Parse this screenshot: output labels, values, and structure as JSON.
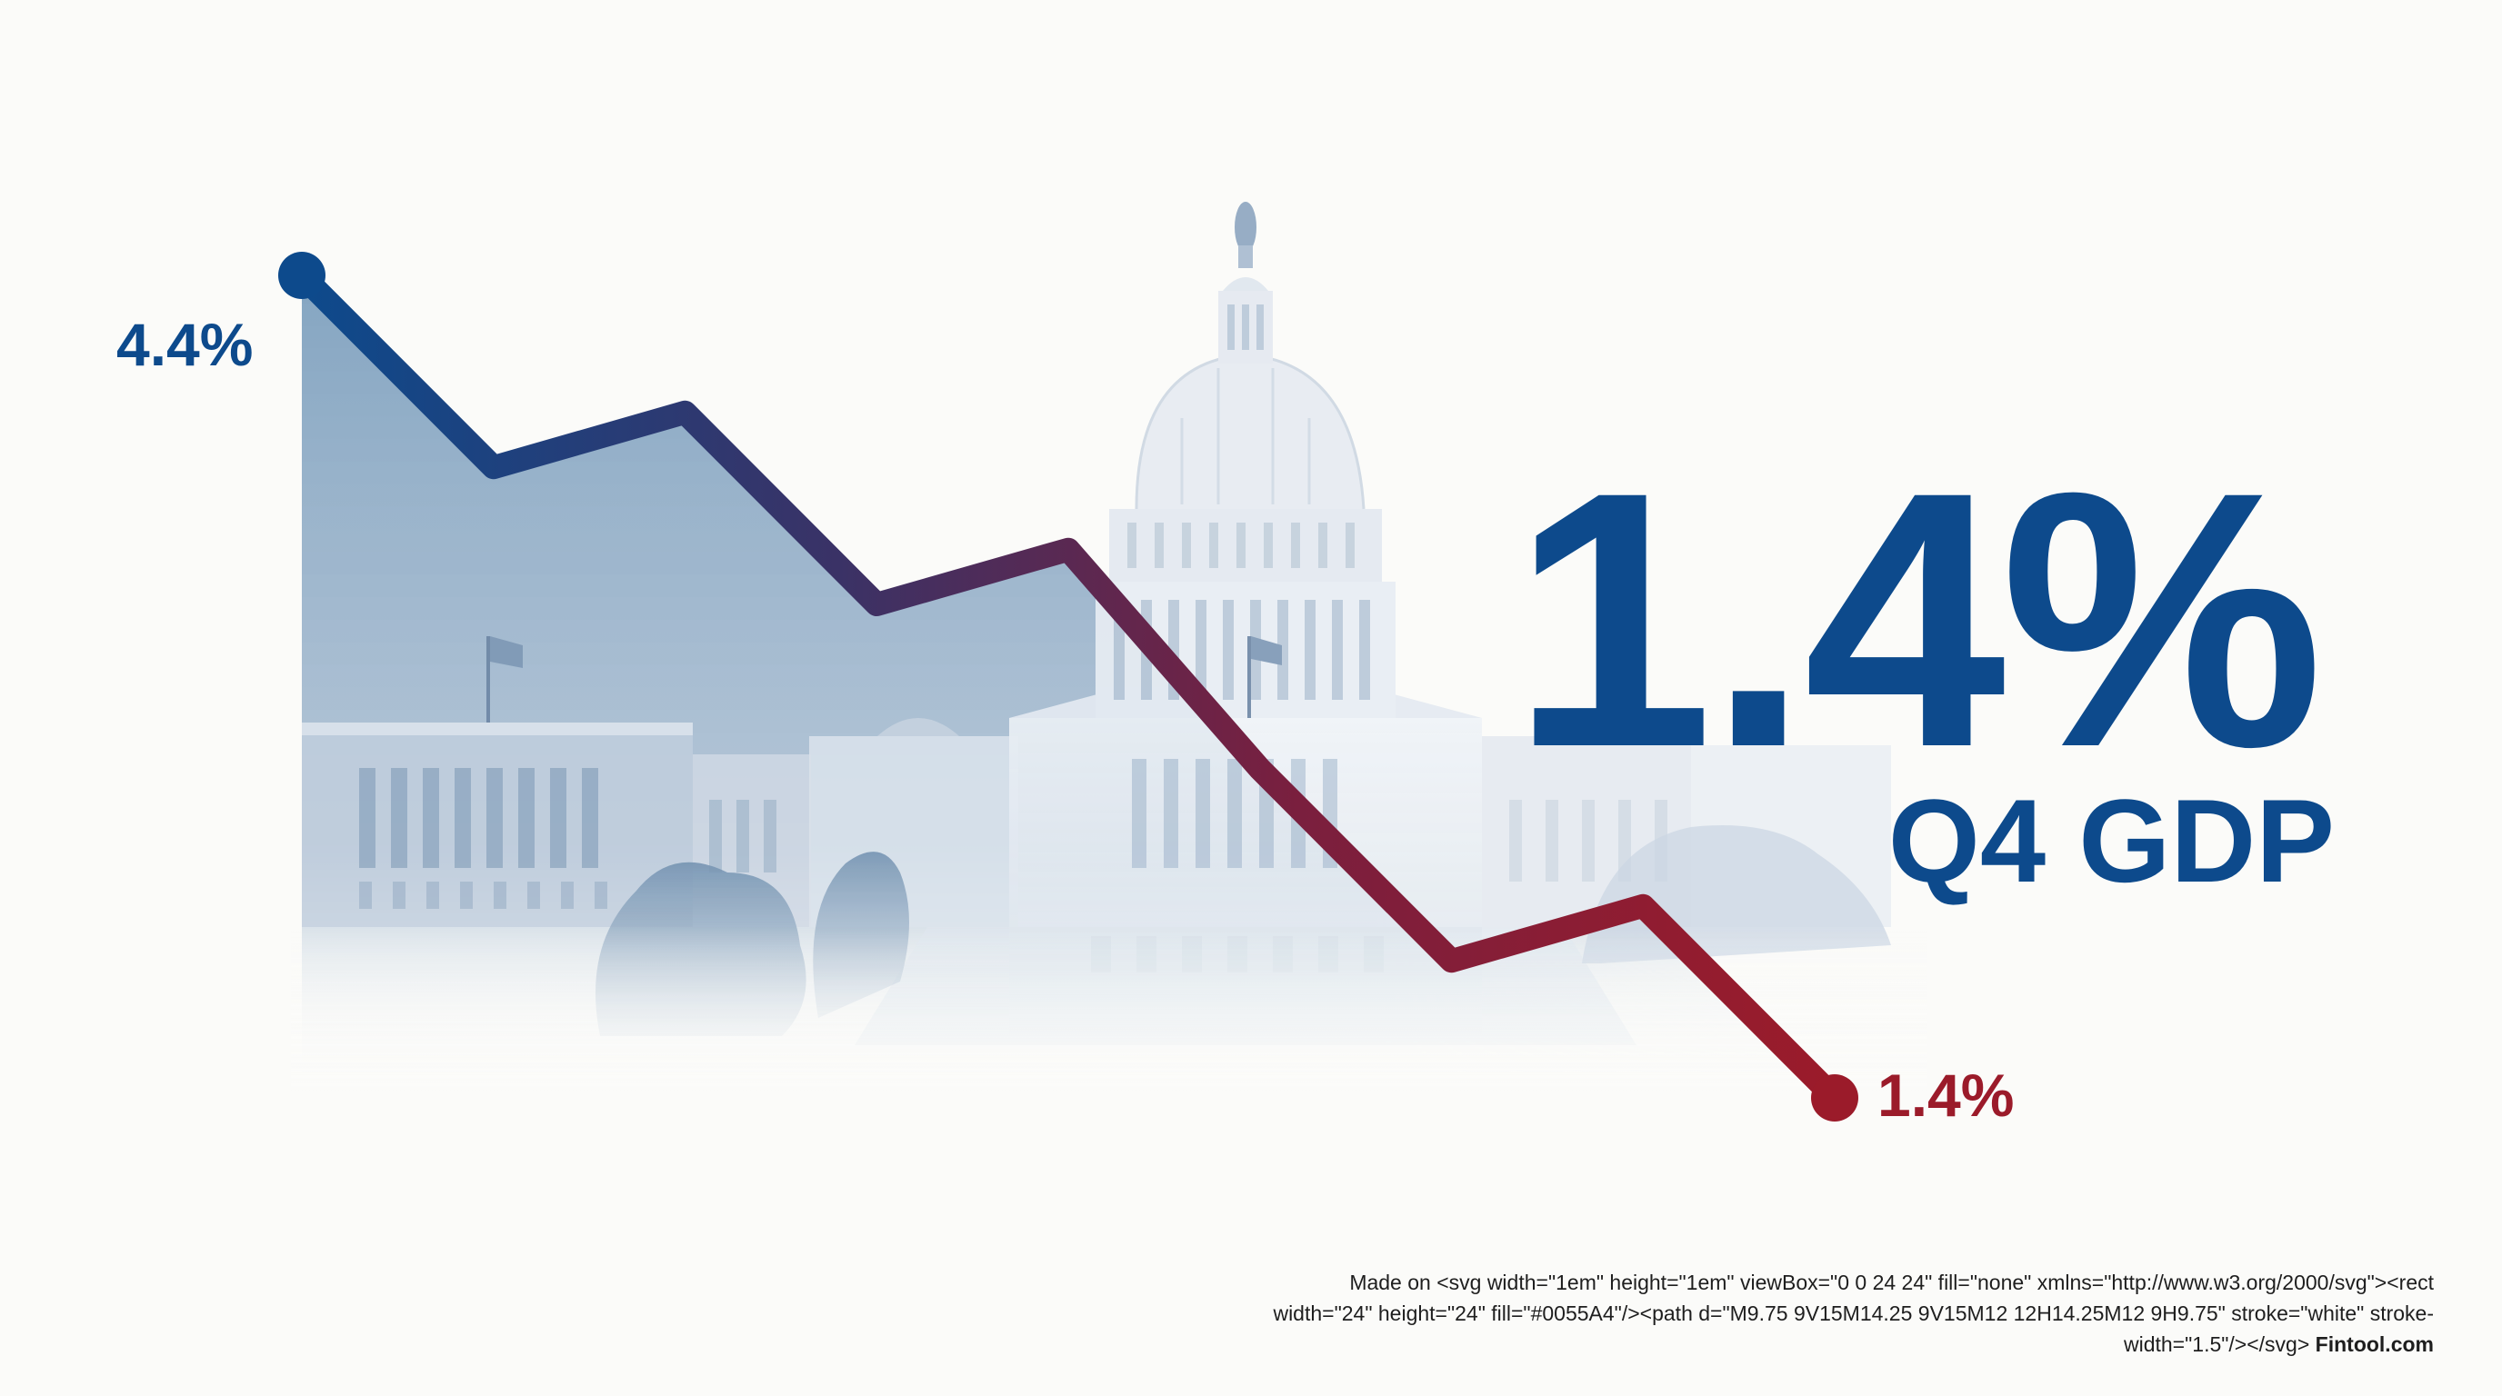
{
  "chart_data": {
    "type": "line",
    "x": [
      0,
      1,
      2,
      3,
      4,
      5,
      6,
      7,
      8
    ],
    "values": [
      4.4,
      3.7,
      3.9,
      3.2,
      3.4,
      2.6,
      1.9,
      2.1,
      1.4
    ],
    "start_label": "4.4%",
    "end_label": "1.4%",
    "ylim": [
      1.4,
      4.4
    ],
    "grid": false,
    "colors": {
      "start": "#0d4a8c",
      "mid": "#4a2f60",
      "end": "#9b1b2a"
    }
  },
  "headline": {
    "value": "1.4%",
    "label": "Q4 GDP"
  },
  "illustration": {
    "icon": "us-capitol-building-icon"
  },
  "footer": {
    "text": "Made on <svg width=\"1em\" height=\"1em\" viewBox=\"0 0 24 24\" fill=\"none\" xmlns=\"http://www.w3.org/2000/svg\"><rect width=\"24\" height=\"24\" fill=\"#0055A4\"/><path d=\"M9.75 9V15M14.25 9V15M12 12H14.25M12 9H9.75\" stroke=\"white\" stroke-width=\"1.5\"/></svg>",
    "brand": "Fintool.com"
  }
}
